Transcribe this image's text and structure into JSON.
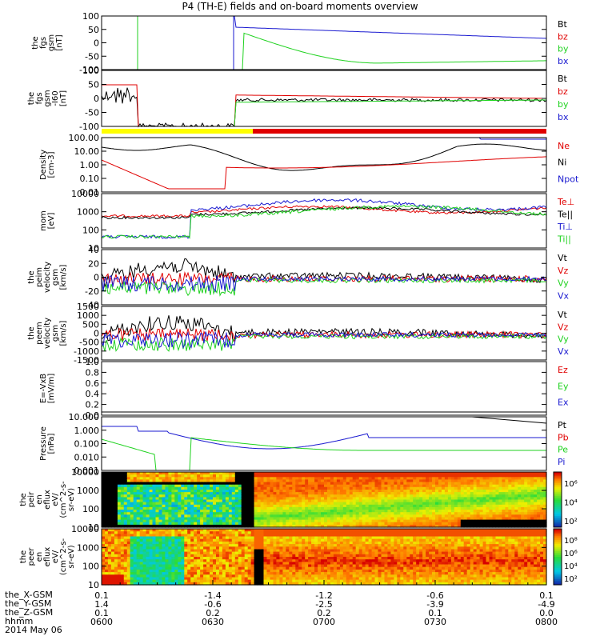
{
  "title": "P4 (TH-E) fields and on-board moments overview",
  "colors": {
    "black": "#000000",
    "red": "#e00000",
    "green": "#1fd21f",
    "blue": "#1a1ad0",
    "yellow": "#ffff00"
  },
  "chart_data": [
    {
      "type": "line",
      "ylabel": [
        "the",
        "fgs",
        "gsm",
        "[nT]"
      ],
      "yticks": [
        "100",
        "50",
        "0",
        "-50",
        "-100"
      ],
      "legend": [
        {
          "name": "Bt",
          "color": "#000000"
        },
        {
          "name": "bz",
          "color": "#e00000"
        },
        {
          "name": "by",
          "color": "#1fd21f"
        },
        {
          "name": "bx",
          "color": "#1a1ad0"
        }
      ]
    },
    {
      "type": "line",
      "ylabel": [
        "the",
        "fgs",
        "gsm",
        "-I60",
        "[nT]"
      ],
      "yticks": [
        "100",
        "50",
        "0",
        "-50",
        "-100"
      ],
      "legend": [
        {
          "name": "Bt",
          "color": "#000000"
        },
        {
          "name": "bz",
          "color": "#e00000"
        },
        {
          "name": "by",
          "color": "#1fd21f"
        },
        {
          "name": "bx",
          "color": "#1a1ad0"
        }
      ]
    },
    {
      "type": "line",
      "ylabel": [
        "Density",
        "[cm-3]"
      ],
      "yticks": [
        "100.00",
        "10.00",
        "1.00",
        "0.10",
        "0.01"
      ],
      "log": true,
      "legend": [
        {
          "name": "Ne",
          "color": "#e00000"
        },
        {
          "name": "Ni",
          "color": "#000000"
        },
        {
          "name": "Npot",
          "color": "#1a1ad0"
        }
      ]
    },
    {
      "type": "line",
      "ylabel": [
        "mom",
        "[eV]"
      ],
      "yticks": [
        "10000",
        "1000",
        "100",
        "10"
      ],
      "log": true,
      "legend": [
        {
          "name": "Te⊥",
          "color": "#e00000"
        },
        {
          "name": "Te||",
          "color": "#000000"
        },
        {
          "name": "Ti⊥",
          "color": "#1a1ad0"
        },
        {
          "name": "Ti||",
          "color": "#1fd21f"
        }
      ]
    },
    {
      "type": "line",
      "ylabel": [
        "the",
        "peim",
        "velocity",
        "gsm",
        "[km/s]"
      ],
      "yticks": [
        "40",
        "20",
        "0",
        "-20",
        "-40"
      ],
      "legend": [
        {
          "name": "Vt",
          "color": "#000000"
        },
        {
          "name": "Vz",
          "color": "#e00000"
        },
        {
          "name": "Vy",
          "color": "#1fd21f"
        },
        {
          "name": "Vx",
          "color": "#1a1ad0"
        }
      ]
    },
    {
      "type": "line",
      "ylabel": [
        "the",
        "peem",
        "velocity",
        "gsm",
        "[km/s]"
      ],
      "yticks": [
        "1500",
        "1000",
        "500",
        "0",
        "-500",
        "-1000",
        "-1500"
      ],
      "legend": [
        {
          "name": "Vt",
          "color": "#000000"
        },
        {
          "name": "Vz",
          "color": "#e00000"
        },
        {
          "name": "Vy",
          "color": "#1fd21f"
        },
        {
          "name": "Vx",
          "color": "#1a1ad0"
        }
      ]
    },
    {
      "type": "line",
      "ylabel": [
        "E=-VxB",
        "[mV/m]"
      ],
      "yticks": [
        "1.0",
        "0.8",
        "0.6",
        "0.4",
        "0.2",
        "0.0"
      ],
      "legend": [
        {
          "name": "Ez",
          "color": "#e00000"
        },
        {
          "name": "Ey",
          "color": "#1fd21f"
        },
        {
          "name": "Ex",
          "color": "#1a1ad0"
        }
      ]
    },
    {
      "type": "line",
      "ylabel": [
        "Pressure",
        "[nPa]"
      ],
      "yticks": [
        "10.000",
        "1.000",
        "0.100",
        "0.010",
        "0.001"
      ],
      "log": true,
      "legend": [
        {
          "name": "Pt",
          "color": "#000000"
        },
        {
          "name": "Pb",
          "color": "#e00000"
        },
        {
          "name": "Pe",
          "color": "#1fd21f"
        },
        {
          "name": "Pi",
          "color": "#1a1ad0"
        }
      ]
    },
    {
      "type": "heatmap",
      "ylabel": [
        "the",
        "peir",
        "en",
        "eflux",
        "eV/",
        "(cm^2-s-",
        "sr-eV)"
      ],
      "yticks": [
        "10000",
        "1000",
        "100",
        "10"
      ],
      "colorbar_ticks": [
        "10⁶",
        "10⁴",
        "10²"
      ]
    },
    {
      "type": "heatmap",
      "ylabel": [
        "the",
        "peer",
        "en",
        "eflux",
        "eV/",
        "(cm^2-s-",
        "sr-eV)"
      ],
      "yticks": [
        "10000",
        "1000",
        "100",
        "10"
      ],
      "colorbar_ticks": [
        "10⁸",
        "10⁶",
        "10⁴",
        "10²"
      ]
    }
  ],
  "x_axis": {
    "row_labels": [
      "the_X-GSM",
      "the_Y-GSM",
      "the_Z-GSM",
      "hhmm",
      "2014 May 06"
    ],
    "ticks": [
      {
        "x": "0.1",
        "y": "1.4",
        "z": "0.1",
        "t": "0600"
      },
      {
        "x": "-1.4",
        "y": "-0.6",
        "z": "0.2",
        "t": "0630"
      },
      {
        "x": "-1.2",
        "y": "-2.5",
        "z": "0.2",
        "t": "0700"
      },
      {
        "x": "-0.6",
        "y": "-3.9",
        "z": "0.1",
        "t": "0730"
      },
      {
        "x": "0.1",
        "y": "-4.9",
        "z": "0.0",
        "t": "0800"
      }
    ]
  }
}
